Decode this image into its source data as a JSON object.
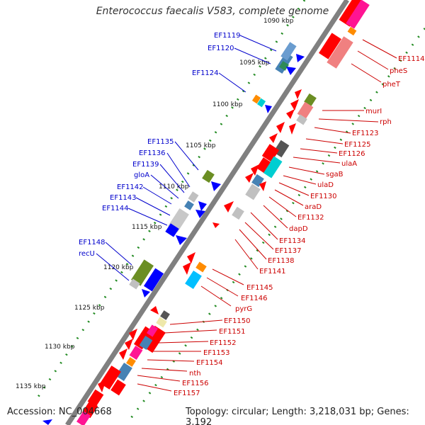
{
  "title": "Enterococcus faecalis V583, complete genome",
  "accession": "Accession: NC_004668",
  "topology": "Topology: circular; Length: 3,218,031 bp; Genes: 3,192",
  "kbp_labels": [
    "1090 kbp",
    "1095 kbp",
    "1100 kbp",
    "1105 kbp",
    "1110 kbp",
    "1115 kbp",
    "1120 kbp",
    "1125 kbp",
    "1130 kbp",
    "1135 kbp"
  ],
  "left_genes": [
    "EF1119",
    "EF1120",
    "EF1124",
    "EF1135",
    "EF1136",
    "EF1139",
    "gloA",
    "EF1142",
    "EF1143",
    "EF1144",
    "EF1148",
    "recU"
  ],
  "right_genes": [
    "EF1114",
    "pheS",
    "pheT",
    "murI",
    "rph",
    "EF1123",
    "EF1125",
    "EF1126",
    "ulaA",
    "sgaB",
    "ulaD",
    "EF1130",
    "araD",
    "EF1132",
    "dapD",
    "EF1134",
    "EF1137",
    "EF1138",
    "EF1141",
    "EF1145",
    "EF1146",
    "pyrG",
    "EF1150",
    "EF1151",
    "EF1152",
    "EF1153",
    "EF1154",
    "nth",
    "EF1156",
    "EF1157"
  ],
  "colors": {
    "backbone": "#808080",
    "forward_feature": "#0000ff",
    "reverse_feature": "#ff0000",
    "left_label": "#0000cc",
    "right_label": "#cc0000",
    "tick_dots": "#228b22"
  }
}
